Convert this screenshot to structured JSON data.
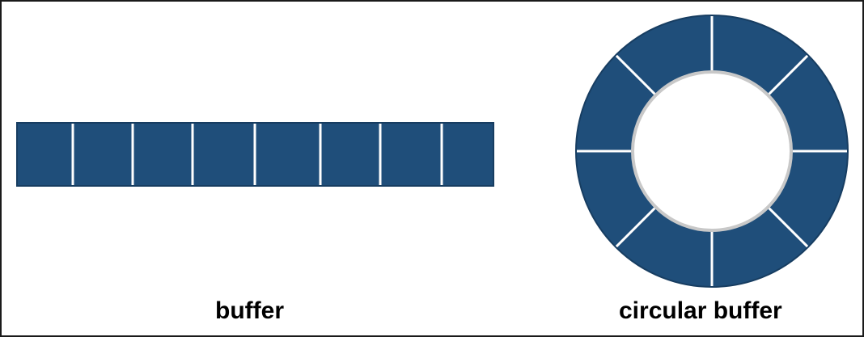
{
  "diagram": {
    "linear_buffer": {
      "label": "buffer",
      "cells": 8
    },
    "circular_buffer": {
      "label": "circular buffer",
      "segments": 8
    }
  },
  "colors": {
    "fill": "#1f4e7a",
    "stroke": "#173d61",
    "divider": "#ffffff",
    "inner_edge": "#c8c8c8",
    "frame": "#1a1a1a",
    "text": "#000000"
  }
}
